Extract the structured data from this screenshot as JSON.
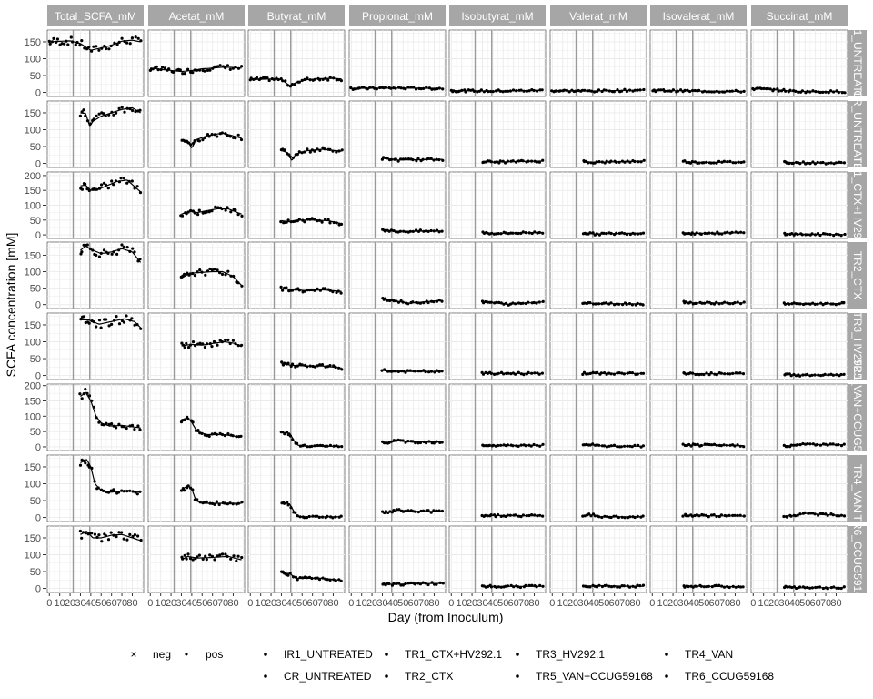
{
  "chart_data": {
    "type": "scatter",
    "subtype": "facet-grid with smoothed trend lines",
    "xlabel": "Day (from Inoculum)",
    "ylabel": "SCFA concentration [mM]",
    "xlim": [
      -2,
      91
    ],
    "x_ticks": [
      0,
      10,
      20,
      30,
      40,
      50,
      60,
      70,
      80
    ],
    "vertical_reference_lines": [
      23,
      39
    ],
    "columns": [
      "Total_SCFA_mM",
      "Acetat_mM",
      "Butyrat_mM",
      "Propionat_mM",
      "Isobutyrat_mM",
      "Valerat_mM",
      "Isovalerat_mM",
      "Succinat_mM"
    ],
    "rows": [
      {
        "label": "IR1_UNTREATED",
        "ylim": [
          -12,
          185
        ],
        "y_ticks": [
          0,
          50,
          100,
          150
        ],
        "start_day": 0
      },
      {
        "label": "CR_UNTREATED",
        "ylim": [
          -12,
          185
        ],
        "y_ticks": [
          0,
          50,
          100,
          150
        ],
        "start_day": 30
      },
      {
        "label": "TR1_CTX+HV292.1",
        "ylim": [
          -12,
          212
        ],
        "y_ticks": [
          0,
          50,
          100,
          150,
          200
        ],
        "start_day": 30
      },
      {
        "label": "TR2_CTX",
        "ylim": [
          -12,
          190
        ],
        "y_ticks": [
          0,
          50,
          100,
          150
        ],
        "start_day": 30
      },
      {
        "label": "TR3_HV292.1",
        "ylim": [
          -12,
          185
        ],
        "y_ticks": [
          0,
          50,
          100,
          150
        ],
        "start_day": 30
      },
      {
        "label": "TR5_VAN+CCUG59168",
        "ylim": [
          -12,
          205
        ],
        "y_ticks": [
          0,
          50,
          100,
          150,
          200
        ],
        "start_day": 30
      },
      {
        "label": "TR4_VAN",
        "ylim": [
          -12,
          185
        ],
        "y_ticks": [
          0,
          50,
          100,
          150
        ],
        "start_day": 30
      },
      {
        "label": "TR6_CCUG59168",
        "ylim": [
          -12,
          185
        ],
        "y_ticks": [
          0,
          50,
          100,
          150
        ],
        "start_day": 30
      }
    ],
    "trend_knots": [
      {
        "row": "IR1_UNTREATED",
        "column": "Total_SCFA_mM",
        "x": [
          0,
          20,
          30,
          40,
          50,
          60,
          70,
          80,
          88
        ],
        "y": [
          150,
          153,
          145,
          125,
          132,
          140,
          152,
          155,
          150
        ]
      },
      {
        "row": "IR1_UNTREATED",
        "column": "Acetat_mM",
        "x": [
          0,
          20,
          30,
          40,
          50,
          60,
          70,
          80,
          88
        ],
        "y": [
          72,
          65,
          62,
          65,
          70,
          72,
          75,
          74,
          72
        ]
      },
      {
        "row": "IR1_UNTREATED",
        "column": "Butyrat_mM",
        "x": [
          0,
          20,
          30,
          38,
          43,
          55,
          70,
          80,
          88
        ],
        "y": [
          38,
          40,
          38,
          20,
          28,
          38,
          41,
          42,
          40
        ]
      },
      {
        "row": "IR1_UNTREATED",
        "column": "Propionat_mM",
        "x": [
          0,
          40,
          88
        ],
        "y": [
          12,
          13,
          12
        ]
      },
      {
        "row": "IR1_UNTREATED",
        "column": "Isobutyrat_mM",
        "x": [
          0,
          40,
          88
        ],
        "y": [
          5,
          4,
          6
        ]
      },
      {
        "row": "IR1_UNTREATED",
        "column": "Valerat_mM",
        "x": [
          0,
          40,
          88
        ],
        "y": [
          5,
          4,
          7
        ]
      },
      {
        "row": "IR1_UNTREATED",
        "column": "Isovalerat_mM",
        "x": [
          0,
          40,
          88
        ],
        "y": [
          6,
          4,
          3
        ]
      },
      {
        "row": "IR1_UNTREATED",
        "column": "Succinat_mM",
        "x": [
          0,
          20,
          40,
          88
        ],
        "y": [
          11,
          8,
          3,
          2
        ]
      },
      {
        "row": "CR_UNTREATED",
        "column": "Total_SCFA_mM",
        "x": [
          30,
          35,
          39,
          42,
          50,
          60,
          70,
          80,
          88
        ],
        "y": [
          150,
          148,
          110,
          125,
          140,
          150,
          160,
          165,
          150
        ]
      },
      {
        "row": "CR_UNTREATED",
        "column": "Acetat_mM",
        "x": [
          30,
          36,
          40,
          44,
          55,
          70,
          88
        ],
        "y": [
          70,
          68,
          45,
          70,
          82,
          90,
          75
        ]
      },
      {
        "row": "CR_UNTREATED",
        "column": "Butyrat_mM",
        "x": [
          30,
          36,
          40,
          44,
          55,
          70,
          88
        ],
        "y": [
          38,
          32,
          8,
          28,
          38,
          42,
          36
        ]
      },
      {
        "row": "CR_UNTREATED",
        "column": "Propionat_mM",
        "x": [
          30,
          45,
          88
        ],
        "y": [
          15,
          10,
          12
        ]
      },
      {
        "row": "CR_UNTREATED",
        "column": "Isobutyrat_mM",
        "x": [
          30,
          40,
          88
        ],
        "y": [
          6,
          4,
          7
        ]
      },
      {
        "row": "CR_UNTREATED",
        "column": "Valerat_mM",
        "x": [
          30,
          40,
          88
        ],
        "y": [
          6,
          3,
          7
        ]
      },
      {
        "row": "CR_UNTREATED",
        "column": "Isovalerat_mM",
        "x": [
          30,
          40,
          88
        ],
        "y": [
          6,
          3,
          4
        ]
      },
      {
        "row": "CR_UNTREATED",
        "column": "Succinat_mM",
        "x": [
          30,
          40,
          88
        ],
        "y": [
          4,
          2,
          1
        ]
      },
      {
        "row": "TR1_CTX+HV292.1",
        "column": "Total_SCFA_mM",
        "x": [
          30,
          35,
          40,
          45,
          55,
          65,
          75,
          88
        ],
        "y": [
          165,
          168,
          150,
          150,
          165,
          180,
          185,
          145
        ]
      },
      {
        "row": "TR1_CTX+HV292.1",
        "column": "Acetat_mM",
        "x": [
          30,
          38,
          45,
          55,
          65,
          75,
          88
        ],
        "y": [
          70,
          80,
          75,
          82,
          88,
          88,
          70
        ]
      },
      {
        "row": "TR1_CTX+HV292.1",
        "column": "Butyrat_mM",
        "x": [
          30,
          38,
          45,
          60,
          75,
          88
        ],
        "y": [
          48,
          44,
          50,
          50,
          48,
          38
        ]
      },
      {
        "row": "TR1_CTX+HV292.1",
        "column": "Propionat_mM",
        "x": [
          30,
          40,
          50,
          88
        ],
        "y": [
          18,
          12,
          12,
          13
        ]
      },
      {
        "row": "TR1_CTX+HV292.1",
        "column": "Isobutyrat_mM",
        "x": [
          30,
          40,
          88
        ],
        "y": [
          8,
          5,
          8
        ]
      },
      {
        "row": "TR1_CTX+HV292.1",
        "column": "Valerat_mM",
        "x": [
          30,
          40,
          88
        ],
        "y": [
          7,
          3,
          6
        ]
      },
      {
        "row": "TR1_CTX+HV292.1",
        "column": "Isovalerat_mM",
        "x": [
          30,
          40,
          88
        ],
        "y": [
          7,
          5,
          7
        ]
      },
      {
        "row": "TR1_CTX+HV292.1",
        "column": "Succinat_mM",
        "x": [
          30,
          40,
          88
        ],
        "y": [
          4,
          2,
          1
        ]
      },
      {
        "row": "TR2_CTX",
        "column": "Total_SCFA_mM",
        "x": [
          30,
          35,
          42,
          50,
          60,
          70,
          80,
          88
        ],
        "y": [
          165,
          178,
          165,
          155,
          160,
          170,
          160,
          128
        ]
      },
      {
        "row": "TR2_CTX",
        "column": "Acetat_mM",
        "x": [
          30,
          38,
          50,
          60,
          70,
          80,
          88
        ],
        "y": [
          80,
          95,
          98,
          100,
          100,
          85,
          58
        ]
      },
      {
        "row": "TR2_CTX",
        "column": "Butyrat_mM",
        "x": [
          30,
          40,
          55,
          70,
          88
        ],
        "y": [
          48,
          46,
          42,
          45,
          40
        ]
      },
      {
        "row": "TR2_CTX",
        "column": "Propionat_mM",
        "x": [
          30,
          40,
          55,
          70,
          88
        ],
        "y": [
          18,
          13,
          4,
          8,
          13
        ]
      },
      {
        "row": "TR2_CTX",
        "column": "Isobutyrat_mM",
        "x": [
          30,
          40,
          55,
          88
        ],
        "y": [
          7,
          6,
          1,
          8
        ]
      },
      {
        "row": "TR2_CTX",
        "column": "Valerat_mM",
        "x": [
          30,
          40,
          88
        ],
        "y": [
          7,
          3,
          2
        ]
      },
      {
        "row": "TR2_CTX",
        "column": "Isovalerat_mM",
        "x": [
          30,
          40,
          88
        ],
        "y": [
          8,
          5,
          5
        ]
      },
      {
        "row": "TR2_CTX",
        "column": "Succinat_mM",
        "x": [
          30,
          40,
          88
        ],
        "y": [
          3,
          2,
          3
        ]
      },
      {
        "row": "TR3_HV292.1",
        "column": "Total_SCFA_mM",
        "x": [
          30,
          38,
          48,
          60,
          72,
          82,
          88
        ],
        "y": [
          165,
          165,
          152,
          160,
          168,
          160,
          142
        ]
      },
      {
        "row": "TR3_HV292.1",
        "column": "Acetat_mM",
        "x": [
          30,
          40,
          50,
          60,
          72,
          82,
          88
        ],
        "y": [
          88,
          92,
          90,
          95,
          100,
          95,
          85
        ]
      },
      {
        "row": "TR3_HV292.1",
        "column": "Butyrat_mM",
        "x": [
          30,
          40,
          55,
          70,
          88
        ],
        "y": [
          35,
          30,
          28,
          28,
          22
        ]
      },
      {
        "row": "TR3_HV292.1",
        "column": "Propionat_mM",
        "x": [
          30,
          40,
          60,
          88
        ],
        "y": [
          16,
          12,
          12,
          12
        ]
      },
      {
        "row": "TR3_HV292.1",
        "column": "Isobutyrat_mM",
        "x": [
          30,
          88
        ],
        "y": [
          6,
          6
        ]
      },
      {
        "row": "TR3_HV292.1",
        "column": "Valerat_mM",
        "x": [
          30,
          88
        ],
        "y": [
          6,
          6
        ]
      },
      {
        "row": "TR3_HV292.1",
        "column": "Isovalerat_mM",
        "x": [
          30,
          88
        ],
        "y": [
          5,
          5
        ]
      },
      {
        "row": "TR3_HV292.1",
        "column": "Succinat_mM",
        "x": [
          30,
          40,
          88
        ],
        "y": [
          4,
          1,
          1
        ]
      },
      {
        "row": "TR5_VAN+CCUG59168",
        "column": "Total_SCFA_mM",
        "x": [
          30,
          35,
          40,
          45,
          50,
          58,
          70,
          88
        ],
        "y": [
          165,
          178,
          150,
          100,
          78,
          68,
          70,
          62
        ]
      },
      {
        "row": "TR5_VAN+CCUG59168",
        "column": "Acetat_mM",
        "x": [
          30,
          36,
          40,
          45,
          55,
          70,
          88
        ],
        "y": [
          88,
          95,
          80,
          50,
          40,
          40,
          32
        ]
      },
      {
        "row": "TR5_VAN+CCUG59168",
        "column": "Butyrat_mM",
        "x": [
          30,
          38,
          42,
          46,
          55,
          88
        ],
        "y": [
          48,
          45,
          20,
          5,
          2,
          2
        ]
      },
      {
        "row": "TR5_VAN+CCUG59168",
        "column": "Propionat_mM",
        "x": [
          30,
          38,
          45,
          60,
          88
        ],
        "y": [
          14,
          15,
          20,
          16,
          16
        ]
      },
      {
        "row": "TR5_VAN+CCUG59168",
        "column": "Isobutyrat_mM",
        "x": [
          30,
          45,
          88
        ],
        "y": [
          6,
          4,
          5
        ]
      },
      {
        "row": "TR5_VAN+CCUG59168",
        "column": "Valerat_mM",
        "x": [
          30,
          40,
          50,
          88
        ],
        "y": [
          5,
          6,
          2,
          2
        ]
      },
      {
        "row": "TR5_VAN+CCUG59168",
        "column": "Isovalerat_mM",
        "x": [
          30,
          88
        ],
        "y": [
          6,
          4
        ]
      },
      {
        "row": "TR5_VAN+CCUG59168",
        "column": "Succinat_mM",
        "x": [
          30,
          40,
          50,
          70,
          88
        ],
        "y": [
          4,
          3,
          10,
          6,
          7
        ]
      },
      {
        "row": "TR4_VAN",
        "column": "Total_SCFA_mM",
        "x": [
          30,
          36,
          40,
          44,
          50,
          60,
          75,
          88
        ],
        "y": [
          162,
          172,
          150,
          100,
          80,
          75,
          80,
          75
        ]
      },
      {
        "row": "TR4_VAN",
        "column": "Acetat_mM",
        "x": [
          30,
          36,
          40,
          44,
          50,
          88
        ],
        "y": [
          80,
          95,
          85,
          50,
          42,
          42
        ]
      },
      {
        "row": "TR4_VAN",
        "column": "Butyrat_mM",
        "x": [
          30,
          38,
          42,
          46,
          55,
          88
        ],
        "y": [
          45,
          40,
          18,
          3,
          2,
          2
        ]
      },
      {
        "row": "TR4_VAN",
        "column": "Propionat_mM",
        "x": [
          30,
          40,
          45,
          60,
          88
        ],
        "y": [
          15,
          17,
          22,
          18,
          18
        ]
      },
      {
        "row": "TR4_VAN",
        "column": "Isobutyrat_mM",
        "x": [
          30,
          88
        ],
        "y": [
          6,
          5
        ]
      },
      {
        "row": "TR4_VAN",
        "column": "Valerat_mM",
        "x": [
          30,
          40,
          46,
          88
        ],
        "y": [
          6,
          8,
          2,
          2
        ]
      },
      {
        "row": "TR4_VAN",
        "column": "Isovalerat_mM",
        "x": [
          30,
          88
        ],
        "y": [
          6,
          4
        ]
      },
      {
        "row": "TR4_VAN",
        "column": "Succinat_mM",
        "x": [
          30,
          40,
          50,
          70,
          88
        ],
        "y": [
          4,
          5,
          12,
          8,
          6
        ]
      },
      {
        "row": "TR6_CCUG59168",
        "column": "Total_SCFA_mM",
        "x": [
          30,
          36,
          42,
          50,
          60,
          70,
          80,
          88
        ],
        "y": [
          160,
          170,
          150,
          150,
          158,
          160,
          150,
          142
        ]
      },
      {
        "row": "TR6_CCUG59168",
        "column": "Acetat_mM",
        "x": [
          30,
          36,
          45,
          60,
          75,
          88
        ],
        "y": [
          85,
          95,
          90,
          92,
          95,
          85
        ]
      },
      {
        "row": "TR6_CCUG59168",
        "column": "Butyrat_mM",
        "x": [
          30,
          38,
          44,
          55,
          70,
          88
        ],
        "y": [
          46,
          44,
          30,
          30,
          30,
          24
        ]
      },
      {
        "row": "TR6_CCUG59168",
        "column": "Propionat_mM",
        "x": [
          30,
          40,
          60,
          88
        ],
        "y": [
          15,
          12,
          14,
          15
        ]
      },
      {
        "row": "TR6_CCUG59168",
        "column": "Isobutyrat_mM",
        "x": [
          30,
          88
        ],
        "y": [
          6,
          6
        ]
      },
      {
        "row": "TR6_CCUG59168",
        "column": "Valerat_mM",
        "x": [
          30,
          40,
          88
        ],
        "y": [
          6,
          8,
          6
        ]
      },
      {
        "row": "TR6_CCUG59168",
        "column": "Isovalerat_mM",
        "x": [
          30,
          88
        ],
        "y": [
          7,
          5
        ]
      },
      {
        "row": "TR6_CCUG59168",
        "column": "Succinat_mM",
        "x": [
          30,
          40,
          88
        ],
        "y": [
          4,
          2,
          2
        ]
      }
    ],
    "points_per_panel": {
      "IR1_UNTREATED": 40,
      "other_rows": 26
    },
    "legend": {
      "position": "bottom",
      "shape_group": [
        {
          "label": "neg",
          "symbol": "×"
        },
        {
          "label": "pos",
          "symbol": "•"
        }
      ],
      "series_group": [
        [
          "IR1_UNTREATED",
          "TR1_CTX+HV292.1",
          "TR3_HV292.1",
          "TR4_VAN"
        ],
        [
          "CR_UNTREATED",
          "TR2_CTX",
          "TR5_VAN+CCUG59168",
          "TR6_CCUG59168"
        ]
      ]
    },
    "colors": {
      "points": "#000000",
      "trend": "#000000",
      "strip": "#a6a6a6",
      "grid": "#ebebeb",
      "reference_line": "#9a9a9a"
    }
  }
}
